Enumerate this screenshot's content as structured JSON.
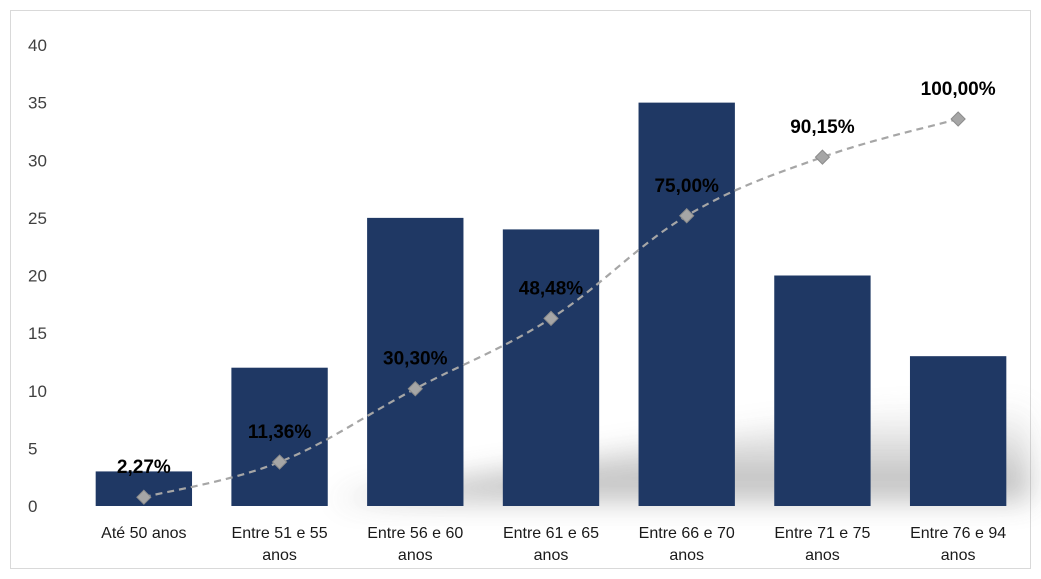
{
  "chart_data": {
    "type": "bar",
    "title": "",
    "xlabel": "",
    "ylabel": "",
    "ylim": [
      0,
      40
    ],
    "yticks": [
      0,
      5,
      10,
      15,
      20,
      25,
      30,
      35,
      40
    ],
    "grid": false,
    "legend": "none",
    "categories": [
      [
        "Até 50 anos"
      ],
      [
        "Entre 51 e 55",
        "anos"
      ],
      [
        "Entre 56 e 60",
        "anos"
      ],
      [
        "Entre 61 e 65",
        "anos"
      ],
      [
        "Entre 66 e 70",
        "anos"
      ],
      [
        "Entre 71 e 75",
        "anos"
      ],
      [
        "Entre 76 e  94",
        "anos"
      ]
    ],
    "series": [
      {
        "type": "bar",
        "values": [
          3,
          12,
          25,
          24,
          35,
          20,
          13
        ],
        "color": "#1f3864"
      },
      {
        "type": "line",
        "style": "dashed",
        "marker": "diamond",
        "color": "#a6a6a6",
        "values_percent": [
          2.27,
          11.36,
          30.3,
          48.48,
          75.0,
          90.15,
          100.0
        ],
        "labels": [
          "2,27%",
          "11,36%",
          "30,30%",
          "48,48%",
          "75,00%",
          "90,15%",
          "100,00%"
        ]
      }
    ]
  }
}
